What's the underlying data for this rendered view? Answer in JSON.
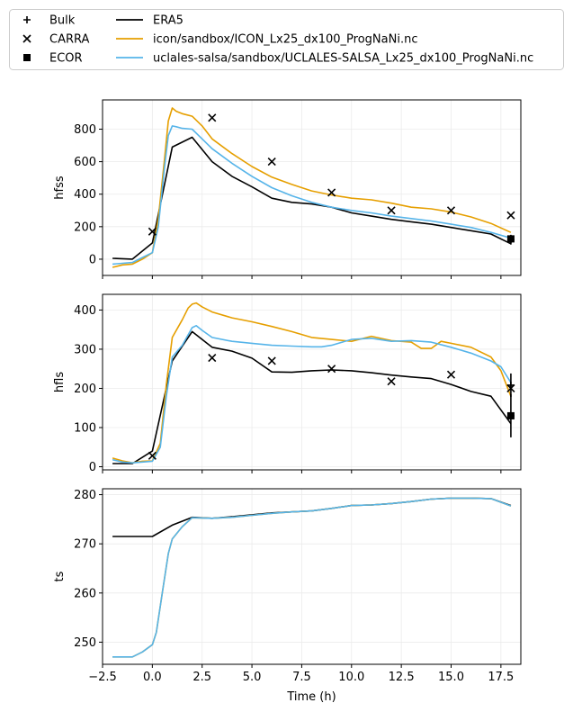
{
  "legend": {
    "entries": [
      {
        "label": "Bulk",
        "marker": "plus",
        "color": "#000000"
      },
      {
        "label": "CARRA",
        "marker": "x",
        "color": "#000000"
      },
      {
        "label": "ECOR",
        "marker": "square",
        "color": "#000000"
      },
      {
        "label": "ERA5",
        "marker": "line",
        "color": "#000000"
      },
      {
        "label": "icon/sandbox/ICON_Lx25_dx100_ProgNaNi.nc",
        "marker": "line",
        "color": "#E69F00"
      },
      {
        "label": "uclales-salsa/sandbox/UCLALES-SALSA_Lx25_dx100_ProgNaNi.nc",
        "marker": "line",
        "color": "#56B4E9"
      }
    ]
  },
  "chart_data": [
    {
      "type": "line",
      "ylabel": "hfss",
      "xlabel": "",
      "xlim": [
        -2.5,
        18.5
      ],
      "ylim": [
        -100,
        980
      ],
      "xticks": [
        -2.5,
        0.0,
        2.5,
        5.0,
        7.5,
        10.0,
        12.5,
        15.0,
        17.5
      ],
      "yticks": [
        0,
        200,
        400,
        600,
        800
      ],
      "grid": true,
      "series": [
        {
          "name": "ERA5",
          "color": "#000000",
          "x": [
            -2,
            -1,
            0,
            1,
            2,
            3,
            4,
            5,
            6,
            7,
            8,
            9,
            10,
            11,
            12,
            13,
            14,
            15,
            16,
            17,
            18
          ],
          "y": [
            5,
            0,
            100,
            690,
            750,
            600,
            510,
            445,
            375,
            350,
            340,
            320,
            285,
            265,
            245,
            230,
            215,
            195,
            175,
            155,
            95
          ]
        },
        {
          "name": "icon/sandbox/ICON_Lx25_dx100_ProgNaNi.nc",
          "color": "#E69F00",
          "x": [
            -2,
            -1.5,
            -1,
            -0.5,
            0,
            0.3,
            0.6,
            0.8,
            1,
            1.2,
            1.5,
            2,
            2.5,
            3,
            4,
            5,
            6,
            7,
            8,
            9,
            10,
            11,
            12,
            13,
            14,
            15,
            16,
            17,
            18
          ],
          "y": [
            -50,
            -35,
            -30,
            0,
            40,
            250,
            600,
            850,
            930,
            910,
            895,
            880,
            820,
            740,
            650,
            570,
            505,
            460,
            420,
            395,
            375,
            365,
            345,
            320,
            310,
            290,
            260,
            220,
            165
          ]
        },
        {
          "name": "uclales-salsa/sandbox/UCLALES-SALSA_Lx25_dx100_ProgNaNi.nc",
          "color": "#56B4E9",
          "x": [
            -2,
            -1.5,
            -1,
            -0.5,
            0,
            0.3,
            0.6,
            0.8,
            1,
            1.2,
            1.5,
            2,
            2.5,
            3,
            4,
            5,
            6,
            7,
            8,
            9,
            10,
            11,
            12,
            13,
            14,
            15,
            16,
            17,
            18
          ],
          "y": [
            -30,
            -25,
            -20,
            10,
            40,
            200,
            550,
            760,
            820,
            815,
            805,
            800,
            740,
            680,
            590,
            510,
            440,
            390,
            350,
            320,
            300,
            285,
            265,
            250,
            235,
            215,
            195,
            165,
            130
          ]
        }
      ],
      "scatter": [
        {
          "name": "CARRA",
          "marker": "x",
          "x": [
            0,
            3,
            6,
            9,
            12,
            15,
            18
          ],
          "y": [
            170,
            870,
            600,
            410,
            300,
            300,
            270
          ]
        },
        {
          "name": "ECOR",
          "marker": "square",
          "x": [
            18
          ],
          "y": [
            125
          ]
        },
        {
          "name": "Bulk",
          "marker": "plus",
          "x": [
            18
          ],
          "y": [
            120
          ],
          "err": [
            30
          ]
        }
      ]
    },
    {
      "type": "line",
      "ylabel": "hfls",
      "xlabel": "",
      "xlim": [
        -2.5,
        18.5
      ],
      "ylim": [
        -8,
        440
      ],
      "xticks": [
        -2.5,
        0.0,
        2.5,
        5.0,
        7.5,
        10.0,
        12.5,
        15.0,
        17.5
      ],
      "yticks": [
        0,
        100,
        200,
        300,
        400
      ],
      "grid": true,
      "series": [
        {
          "name": "ERA5",
          "color": "#000000",
          "x": [
            -2,
            -1,
            0,
            1,
            2,
            3,
            4,
            5,
            6,
            7,
            8,
            9,
            10,
            11,
            12,
            13,
            14,
            15,
            16,
            17,
            18
          ],
          "y": [
            8,
            8,
            40,
            270,
            345,
            305,
            295,
            277,
            242,
            241,
            245,
            247,
            245,
            240,
            234,
            229,
            225,
            210,
            192,
            180,
            110
          ]
        },
        {
          "name": "icon/sandbox/ICON_Lx25_dx100_ProgNaNi.nc",
          "color": "#E69F00",
          "x": [
            -2,
            -1.5,
            -1,
            -0.5,
            0,
            0.4,
            0.7,
            1,
            1.5,
            1.8,
            2,
            2.2,
            2.5,
            3,
            4,
            5,
            6,
            7,
            8,
            9,
            10,
            11,
            12,
            13,
            13.5,
            14,
            14.5,
            15,
            16,
            17,
            17.5,
            18
          ],
          "y": [
            22,
            15,
            10,
            14,
            15,
            60,
            210,
            330,
            375,
            405,
            415,
            418,
            408,
            395,
            380,
            370,
            358,
            345,
            330,
            325,
            320,
            333,
            322,
            318,
            302,
            302,
            320,
            315,
            305,
            280,
            245,
            180
          ]
        },
        {
          "name": "uclales-salsa/sandbox/UCLALES-SALSA_Lx25_dx100_ProgNaNi.nc",
          "color": "#56B4E9",
          "x": [
            -2,
            -1.5,
            -1,
            -0.5,
            0,
            0.4,
            0.7,
            1,
            1.5,
            2,
            2.2,
            2.5,
            3,
            4,
            5,
            6,
            7,
            8,
            8.5,
            9,
            10,
            11,
            12,
            13,
            14,
            15,
            16,
            17,
            17.5,
            18
          ],
          "y": [
            18,
            12,
            10,
            12,
            14,
            50,
            180,
            280,
            310,
            355,
            360,
            348,
            330,
            320,
            315,
            310,
            308,
            306,
            306,
            310,
            325,
            328,
            320,
            322,
            318,
            305,
            290,
            270,
            255,
            215
          ]
        }
      ],
      "scatter": [
        {
          "name": "CARRA",
          "marker": "x",
          "x": [
            0,
            3,
            6,
            9,
            12,
            15,
            18
          ],
          "y": [
            28,
            278,
            270,
            250,
            218,
            235,
            200
          ]
        },
        {
          "name": "ECOR",
          "marker": "square",
          "x": [
            18
          ],
          "y": [
            130
          ]
        },
        {
          "name": "Bulk",
          "marker": "plus",
          "x": [
            18
          ],
          "y": [
            130
          ],
          "err": [
            55
          ]
        },
        {
          "name": "Bulk",
          "marker": "plus",
          "x": [
            18
          ],
          "y": [
            208
          ],
          "err": [
            30
          ]
        }
      ]
    },
    {
      "type": "line",
      "ylabel": "ts",
      "xlabel": "Time (h)",
      "xlim": [
        -2.5,
        18.5
      ],
      "ylim": [
        245.5,
        281.2
      ],
      "xticks": [
        -2.5,
        0.0,
        2.5,
        5.0,
        7.5,
        10.0,
        12.5,
        15.0,
        17.5
      ],
      "xticklabels": [
        "−2.5",
        "0.0",
        "2.5",
        "5.0",
        "7.5",
        "10.0",
        "12.5",
        "15.0",
        "17.5"
      ],
      "yticks": [
        250,
        260,
        270,
        280
      ],
      "grid": true,
      "series": [
        {
          "name": "ERA5",
          "color": "#000000",
          "x": [
            -2,
            -1,
            0,
            1,
            2,
            3,
            4,
            5,
            6,
            7,
            8,
            9,
            10,
            11,
            12,
            13,
            14,
            15,
            16,
            17,
            18
          ],
          "y": [
            271.5,
            271.5,
            271.5,
            273.8,
            275.4,
            275.2,
            275.5,
            275.9,
            276.3,
            276.5,
            276.7,
            277.2,
            277.8,
            277.9,
            278.2,
            278.6,
            279.1,
            279.3,
            279.3,
            279.2,
            277.8
          ]
        },
        {
          "name": "icon/sandbox/ICON_Lx25_dx100_ProgNaNi.nc",
          "color": "#E69F00",
          "x": [
            -2,
            -1,
            -0.5,
            0,
            0.2,
            0.5,
            0.8,
            1,
            1.5,
            2,
            3,
            4,
            5,
            6,
            7,
            8,
            9,
            10,
            11,
            12,
            13,
            14,
            15,
            16,
            17,
            18
          ],
          "y": [
            247,
            247,
            248,
            249.5,
            252,
            260,
            268,
            271,
            273.5,
            275.3,
            275.2,
            275.4,
            275.8,
            276.2,
            276.5,
            276.7,
            277.2,
            277.8,
            277.9,
            278.2,
            278.6,
            279.1,
            279.3,
            279.3,
            279.2,
            277.7
          ]
        },
        {
          "name": "uclales-salsa/sandbox/UCLALES-SALSA_Lx25_dx100_ProgNaNi.nc",
          "color": "#56B4E9",
          "x": [
            -2,
            -1,
            -0.5,
            0,
            0.2,
            0.5,
            0.8,
            1,
            1.5,
            2,
            3,
            4,
            5,
            6,
            7,
            8,
            9,
            10,
            11,
            12,
            13,
            14,
            15,
            16,
            17,
            18
          ],
          "y": [
            247,
            247,
            248,
            249.5,
            252,
            260,
            268,
            271,
            273.5,
            275.3,
            275.2,
            275.4,
            275.8,
            276.2,
            276.5,
            276.7,
            277.2,
            277.8,
            277.9,
            278.2,
            278.6,
            279.1,
            279.3,
            279.3,
            279.2,
            277.7
          ]
        }
      ],
      "scatter": []
    }
  ]
}
